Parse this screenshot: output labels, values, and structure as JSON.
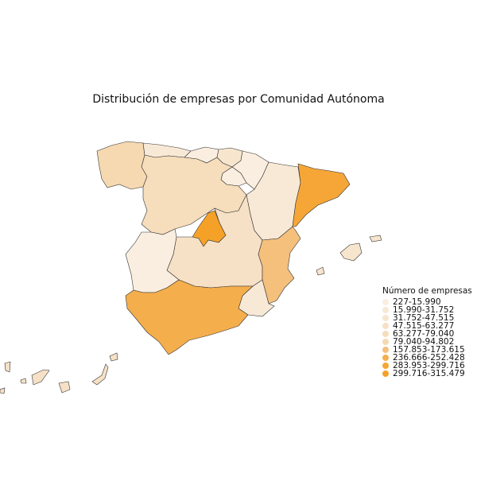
{
  "title": "Distribución de empresas por Comunidad Autónoma",
  "legend": {
    "title": "Número de empresas",
    "items": [
      {
        "label": "227-15.990",
        "color": "#faeee0"
      },
      {
        "label": "15.990-31.752",
        "color": "#f8e9d6"
      },
      {
        "label": "31.752-47.515",
        "color": "#f7e5ce"
      },
      {
        "label": "47.515-63.277",
        "color": "#f6e1c6"
      },
      {
        "label": "63.277-79.040",
        "color": "#f6ddbb"
      },
      {
        "label": "79.040-94.802",
        "color": "#f6d9b0"
      },
      {
        "label": "157.853-173.615",
        "color": "#f4c07c"
      },
      {
        "label": "236.666-252.428",
        "color": "#f5ae4c"
      },
      {
        "label": "283.953-299.716",
        "color": "#f5a636"
      },
      {
        "label": "299.716-315.479",
        "color": "#f5a128"
      }
    ]
  },
  "regions": [
    {
      "id": "galicia",
      "class": 5
    },
    {
      "id": "asturias",
      "class": 1
    },
    {
      "id": "cantabria",
      "class": 0
    },
    {
      "id": "pais-vasco",
      "class": 2
    },
    {
      "id": "navarra",
      "class": 0
    },
    {
      "id": "la-rioja",
      "class": 0
    },
    {
      "id": "castilla-y-leon",
      "class": 4
    },
    {
      "id": "aragon",
      "class": 1
    },
    {
      "id": "cataluna",
      "class": 8
    },
    {
      "id": "madrid",
      "class": 9
    },
    {
      "id": "castilla-la-mancha",
      "class": 3
    },
    {
      "id": "extremadura",
      "class": 0
    },
    {
      "id": "comunitat-valenciana",
      "class": 6
    },
    {
      "id": "murcia",
      "class": 1
    },
    {
      "id": "andalucia",
      "class": 7
    },
    {
      "id": "illes-balears",
      "class": 2
    },
    {
      "id": "canarias",
      "class": 3
    }
  ]
}
